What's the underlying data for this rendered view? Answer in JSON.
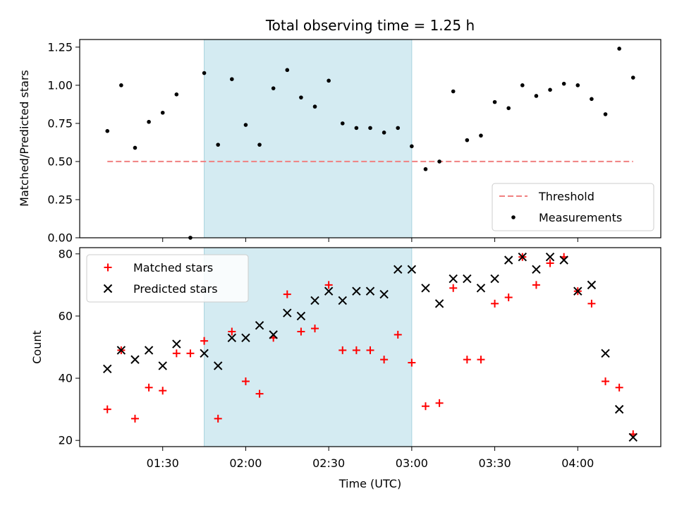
{
  "chart_data": [
    {
      "type": "scatter",
      "title": "Total observing time = 1.25 h",
      "xlabel": "",
      "ylabel": "Matched/Predicted stars",
      "ylim": [
        0,
        1.3
      ],
      "yticks": [
        "0.00",
        "0.25",
        "0.50",
        "0.75",
        "1.00",
        "1.25"
      ],
      "shaded_interval": [
        "01:45",
        "03:00"
      ],
      "shade_color": "#d4ebf2",
      "legend_position": "lower-right",
      "series": [
        {
          "name": "Threshold",
          "kind": "dashed-line",
          "color": "#f08080",
          "x": [
            "01:10",
            "04:20"
          ],
          "y": [
            0.5,
            0.5
          ]
        },
        {
          "name": "Measurements",
          "kind": "dot",
          "color": "#000000",
          "x": [
            "01:10",
            "01:15",
            "01:20",
            "01:25",
            "01:30",
            "01:35",
            "01:40",
            "01:45",
            "01:50",
            "01:55",
            "02:00",
            "02:05",
            "02:10",
            "02:15",
            "02:20",
            "02:25",
            "02:30",
            "02:35",
            "02:40",
            "02:45",
            "02:50",
            "02:55",
            "03:00",
            "03:05",
            "03:10",
            "03:15",
            "03:20",
            "03:25",
            "03:30",
            "03:35",
            "03:40",
            "03:45",
            "03:50",
            "03:55",
            "04:00",
            "04:05",
            "04:10",
            "04:15",
            "04:20"
          ],
          "y": [
            0.7,
            1.0,
            0.59,
            0.76,
            0.82,
            0.94,
            0.0,
            1.08,
            0.61,
            1.04,
            0.74,
            0.61,
            0.98,
            1.1,
            0.92,
            0.86,
            1.03,
            0.75,
            0.72,
            0.72,
            0.69,
            0.72,
            0.6,
            0.45,
            0.5,
            0.96,
            0.64,
            0.67,
            0.89,
            0.85,
            1.0,
            0.93,
            0.97,
            1.01,
            1.0,
            0.91,
            0.81,
            1.24,
            1.05
          ]
        }
      ]
    },
    {
      "type": "scatter",
      "title": "",
      "xlabel": "Time (UTC)",
      "ylabel": "Count",
      "xlim": [
        "01:00",
        "04:30"
      ],
      "ylim": [
        18,
        82
      ],
      "xticks": [
        "01:30",
        "02:00",
        "02:30",
        "03:00",
        "03:30",
        "04:00"
      ],
      "yticks": [
        "20",
        "40",
        "60",
        "80"
      ],
      "shaded_interval": [
        "01:45",
        "03:00"
      ],
      "shade_color": "#d4ebf2",
      "legend_position": "upper-left",
      "series": [
        {
          "name": "Matched stars",
          "kind": "plus",
          "color": "#ff0000",
          "x": [
            "01:10",
            "01:15",
            "01:20",
            "01:25",
            "01:30",
            "01:35",
            "01:40",
            "01:45",
            "01:50",
            "01:55",
            "02:00",
            "02:05",
            "02:10",
            "02:15",
            "02:20",
            "02:25",
            "02:30",
            "02:35",
            "02:40",
            "02:45",
            "02:50",
            "02:55",
            "03:00",
            "03:05",
            "03:10",
            "03:15",
            "03:20",
            "03:25",
            "03:30",
            "03:35",
            "03:40",
            "03:45",
            "03:50",
            "03:55",
            "04:00",
            "04:05",
            "04:10",
            "04:15",
            "04:20"
          ],
          "y": [
            30,
            49,
            27,
            37,
            36,
            48,
            48,
            52,
            27,
            55,
            39,
            35,
            53,
            67,
            55,
            56,
            70,
            49,
            49,
            49,
            46,
            54,
            45,
            31,
            32,
            69,
            46,
            46,
            64,
            66,
            79,
            70,
            77,
            79,
            68,
            64,
            39,
            37,
            22
          ]
        },
        {
          "name": "Predicted stars",
          "kind": "x",
          "color": "#000000",
          "x": [
            "01:10",
            "01:15",
            "01:20",
            "01:25",
            "01:30",
            "01:35",
            "01:45",
            "01:50",
            "01:55",
            "02:00",
            "02:05",
            "02:10",
            "02:15",
            "02:20",
            "02:25",
            "02:30",
            "02:35",
            "02:40",
            "02:45",
            "02:50",
            "02:55",
            "03:00",
            "03:05",
            "03:10",
            "03:15",
            "03:20",
            "03:25",
            "03:30",
            "03:35",
            "03:40",
            "03:45",
            "03:50",
            "03:55",
            "04:00",
            "04:05",
            "04:10",
            "04:15",
            "04:20"
          ],
          "y": [
            43,
            49,
            46,
            49,
            44,
            51,
            48,
            44,
            53,
            53,
            57,
            54,
            61,
            60,
            65,
            68,
            65,
            68,
            68,
            67,
            75,
            75,
            69,
            64,
            72,
            72,
            69,
            72,
            78,
            79,
            75,
            79,
            78,
            68,
            70,
            48,
            30,
            21
          ]
        }
      ]
    }
  ]
}
